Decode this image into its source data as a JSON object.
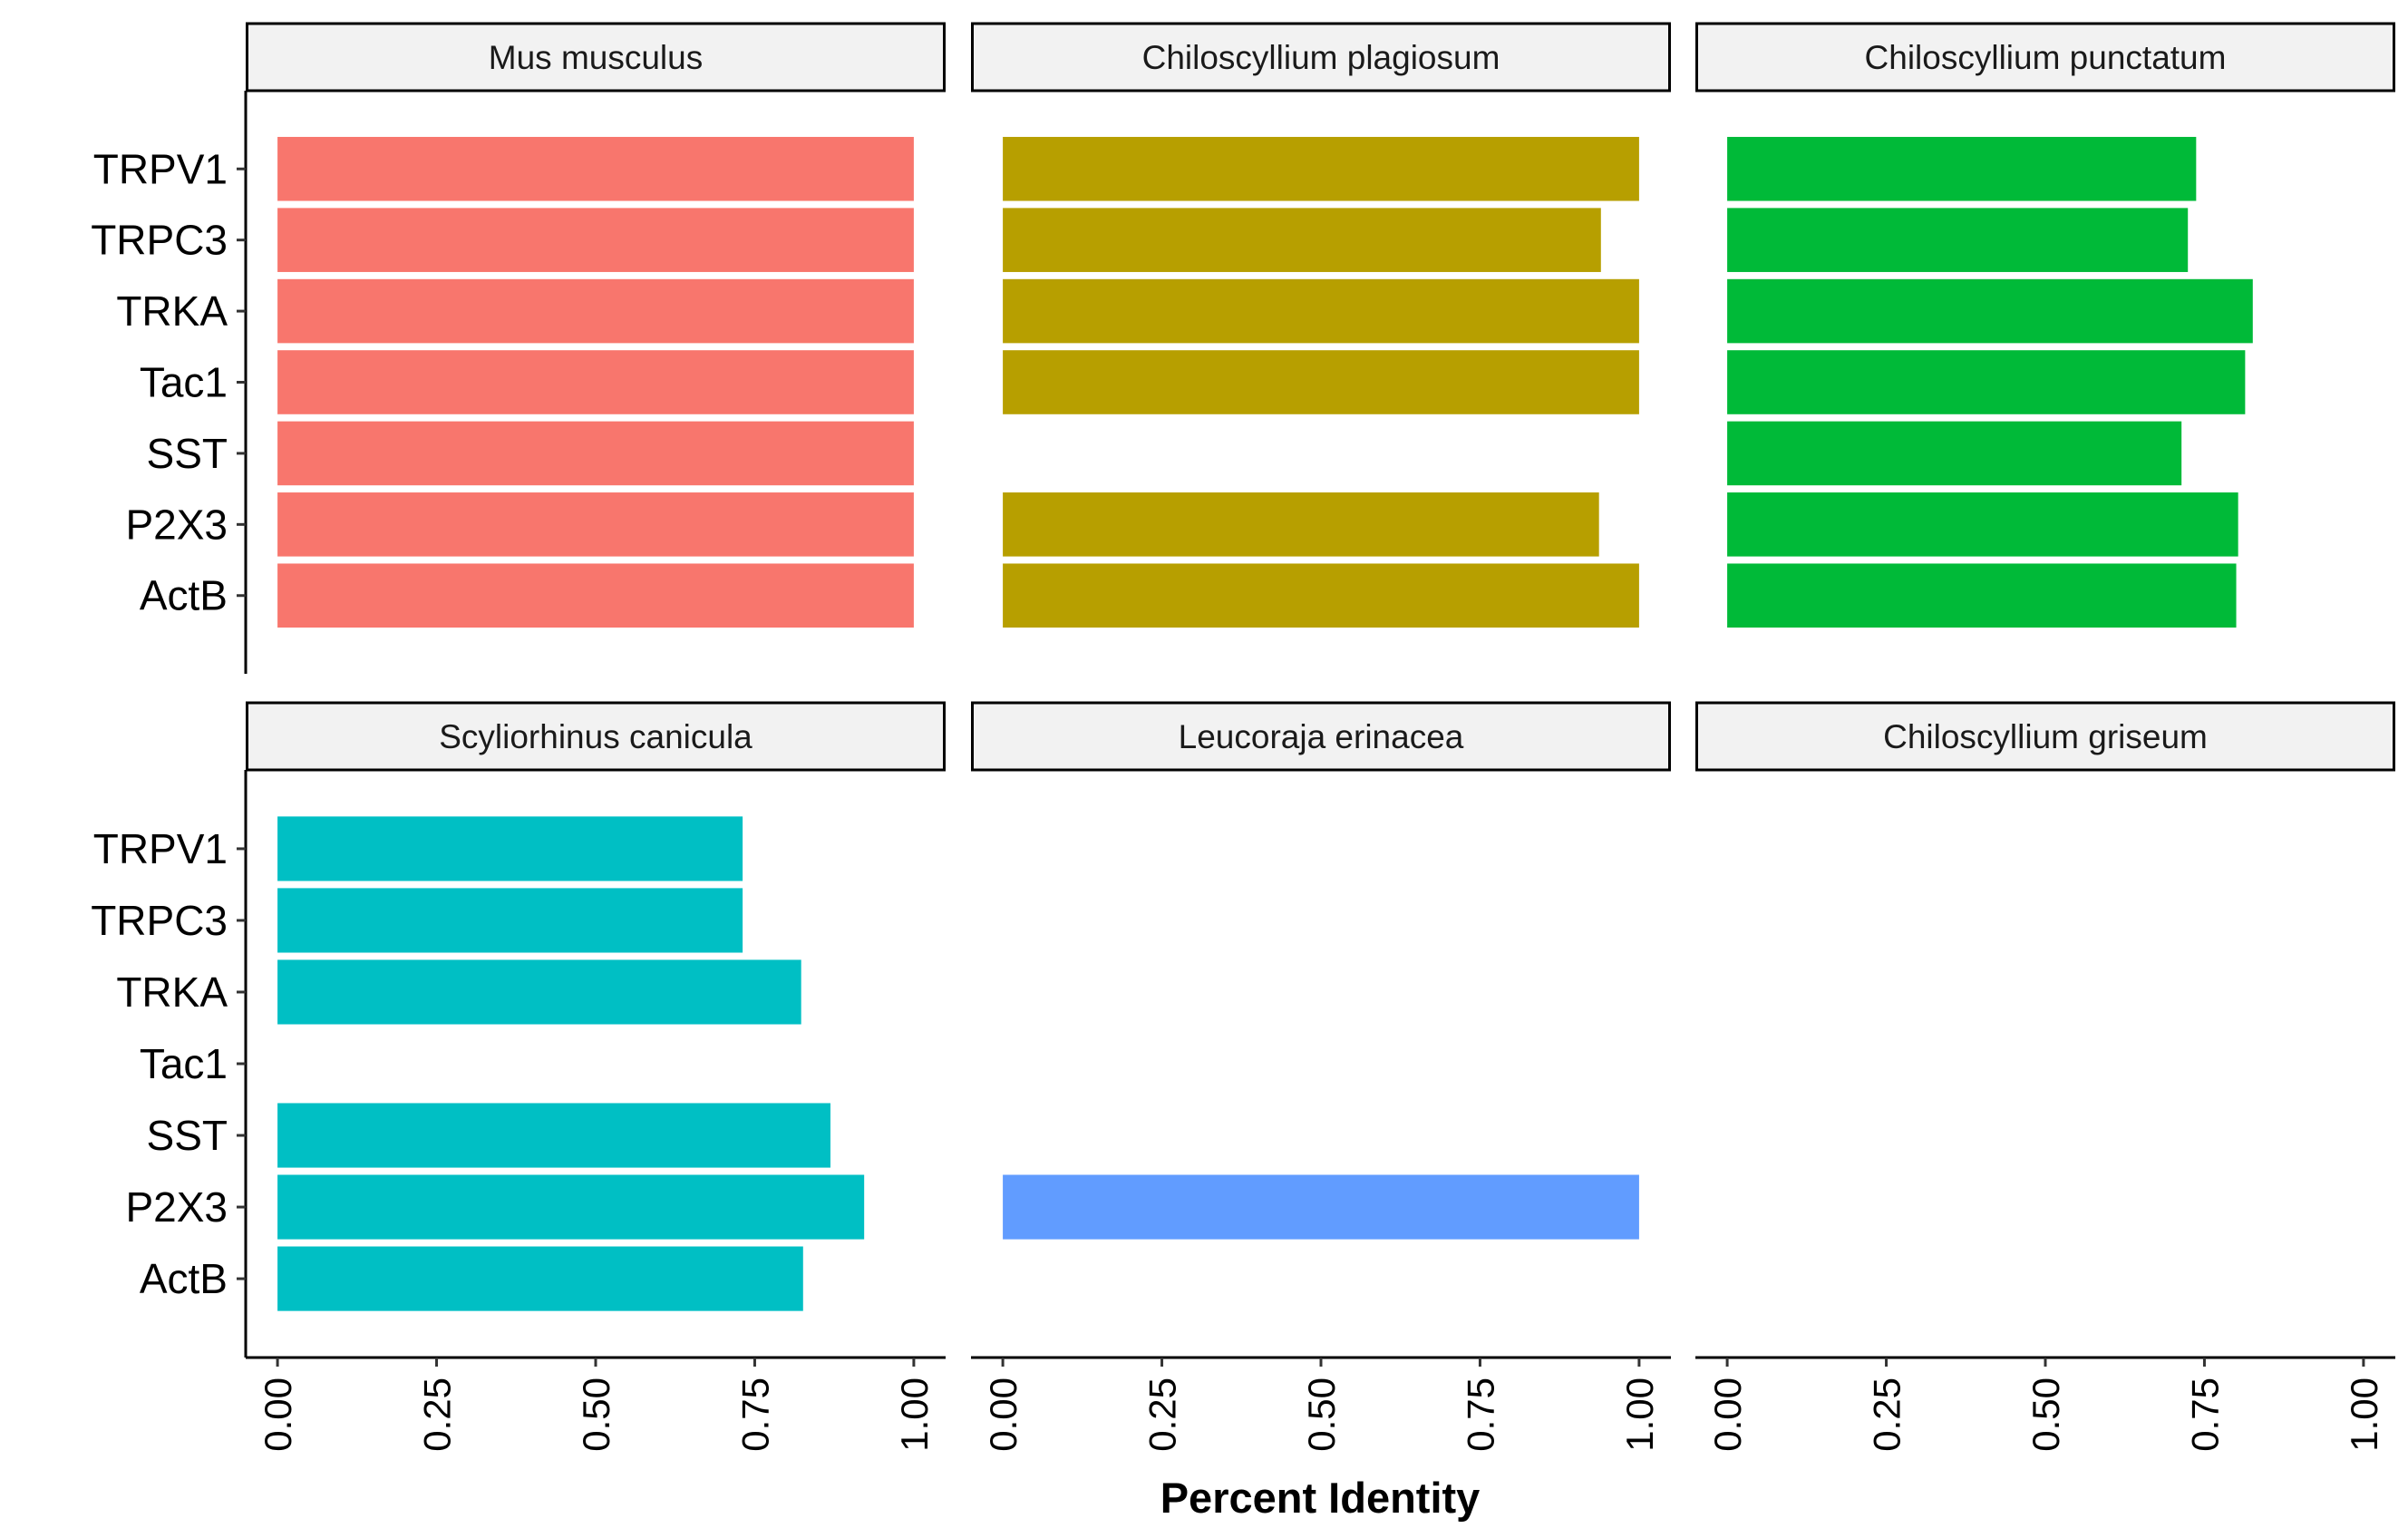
{
  "chart_data": {
    "type": "bar",
    "orientation": "horizontal",
    "xlabel": "Percent Identity",
    "ylabel": "",
    "xlim": [
      0,
      1
    ],
    "xticks": [
      "0.00",
      "0.25",
      "0.50",
      "0.75",
      "1.00"
    ],
    "categories": [
      "TRPV1",
      "TRPC3",
      "TRKA",
      "Tac1",
      "SST",
      "P2X3",
      "ActB"
    ],
    "legend": "none",
    "grid": false,
    "facets": [
      {
        "name": "Mus musculus",
        "color": "#F8766D",
        "values": [
          1.0,
          1.0,
          1.0,
          1.0,
          1.0,
          1.0,
          1.0
        ]
      },
      {
        "name": "Chiloscyllium plagiosum",
        "color": "#B79F00",
        "values": [
          1.0,
          0.94,
          1.0,
          1.0,
          null,
          0.937,
          1.0
        ]
      },
      {
        "name": "Chiloscyllium punctatum",
        "color": "#00BA38",
        "values": [
          0.737,
          0.724,
          0.826,
          0.814,
          0.714,
          0.803,
          0.8
        ]
      },
      {
        "name": "Scyliorhinus canicula",
        "color": "#00BFC4",
        "values": [
          0.731,
          0.731,
          0.823,
          null,
          0.869,
          0.922,
          0.826
        ]
      },
      {
        "name": "Leucoraja erinacea",
        "color": "#619CFF",
        "values": [
          null,
          null,
          null,
          null,
          null,
          1.0,
          null
        ]
      },
      {
        "name": "Chiloscyllium griseum",
        "color": "#F564E3",
        "values": [
          null,
          null,
          null,
          null,
          null,
          null,
          null
        ]
      }
    ]
  }
}
